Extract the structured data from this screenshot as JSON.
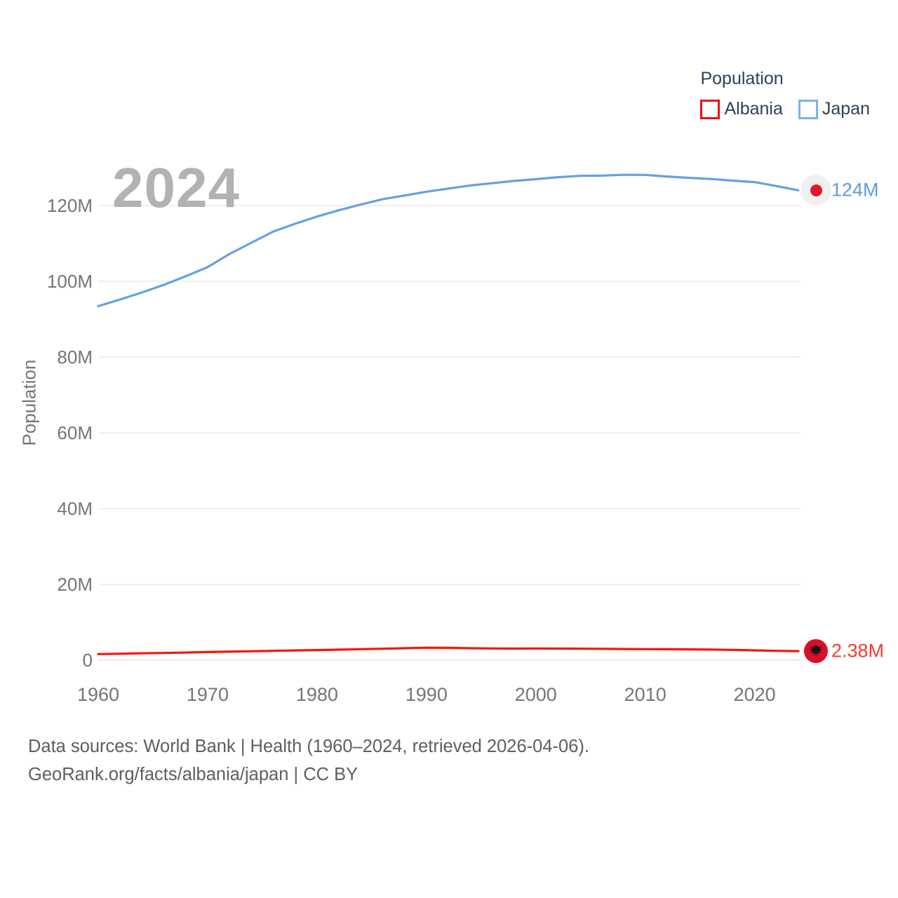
{
  "legend": {
    "title": "Population",
    "items": [
      {
        "label": "Albania",
        "color": "#f00d0d"
      },
      {
        "label": "Japan",
        "color": "#7cb2ec"
      }
    ]
  },
  "year_label": "2024",
  "end_labels": {
    "japan": "124M",
    "albania": "2.38M"
  },
  "footer": {
    "line1": "Data sources: World Bank | Health (1960–2024, retrieved 2026-04-06).",
    "line2": "GeoRank.org/facts/albania/japan | CC BY"
  },
  "chart_data": {
    "type": "line",
    "title": "Population",
    "ylabel": "Population",
    "units": "millions",
    "grid": "horizontal",
    "legend_position": "top-right",
    "xlim": [
      1960,
      2024
    ],
    "ylim": [
      0,
      132
    ],
    "xticks": [
      1960,
      1970,
      1980,
      1990,
      2000,
      2010,
      2020
    ],
    "yticks": [
      {
        "v": 0,
        "label": "0"
      },
      {
        "v": 20,
        "label": "20M"
      },
      {
        "v": 40,
        "label": "40M"
      },
      {
        "v": 60,
        "label": "60M"
      },
      {
        "v": 80,
        "label": "80M"
      },
      {
        "v": 100,
        "label": "100M"
      },
      {
        "v": 120,
        "label": "120M"
      }
    ],
    "x": [
      1960,
      1962,
      1964,
      1966,
      1968,
      1970,
      1972,
      1974,
      1976,
      1978,
      1980,
      1982,
      1984,
      1986,
      1988,
      1990,
      1992,
      1994,
      1996,
      1998,
      2000,
      2002,
      2004,
      2006,
      2008,
      2010,
      2012,
      2014,
      2016,
      2018,
      2020,
      2022,
      2024
    ],
    "series": [
      {
        "name": "Albania",
        "color": "#f7150b",
        "end_label": "2.38M",
        "values": [
          1.61,
          1.71,
          1.81,
          1.91,
          2.02,
          2.14,
          2.24,
          2.35,
          2.46,
          2.57,
          2.67,
          2.78,
          2.9,
          3.02,
          3.14,
          3.29,
          3.25,
          3.14,
          3.09,
          3.05,
          3.09,
          3.05,
          3.03,
          2.99,
          2.95,
          2.91,
          2.88,
          2.86,
          2.8,
          2.73,
          2.6,
          2.46,
          2.38
        ]
      },
      {
        "name": "Japan",
        "color": "#64a1e3",
        "end_label": "124M",
        "values": [
          93.42,
          95.18,
          97.03,
          99.04,
          101.33,
          103.72,
          107.19,
          110.16,
          113.09,
          115.17,
          117.06,
          118.73,
          120.24,
          121.66,
          122.61,
          123.61,
          124.45,
          125.27,
          125.86,
          126.47,
          126.93,
          127.45,
          127.79,
          127.85,
          128.08,
          128.06,
          127.63,
          127.28,
          126.99,
          126.53,
          126.15,
          125.12,
          123.98
        ]
      }
    ]
  }
}
